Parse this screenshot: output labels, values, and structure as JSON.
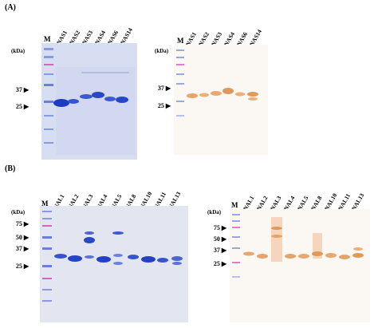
{
  "panels": {
    "A": {
      "label": "(A)",
      "kda": "(kDa)",
      "marker": "M",
      "lanes": [
        "NNAS1",
        "NNAS2",
        "NNAS3",
        "NNAS4",
        "NNAS6",
        "NNAS14"
      ],
      "mw_left": [
        "37",
        "25"
      ],
      "mw_right": [
        "37",
        "25"
      ]
    },
    "B": {
      "label": "(B)",
      "kda": "(kDa)",
      "marker": "M",
      "lanes": [
        "NNAL1",
        "NNAL2",
        "NNAL3",
        "NNAL4",
        "NNAL5",
        "NNAL8",
        "NNAL10",
        "NNAL11",
        "NNAL13"
      ],
      "mw_left": [
        "75",
        "50",
        "37",
        "25"
      ],
      "mw_right": [
        "75",
        "50",
        "37",
        "25"
      ]
    }
  },
  "colors": {
    "coomassie_bg": "#dde3f3",
    "coomassie_band": "#2846c8",
    "western_bg": "#fbf7f2",
    "western_band": "#e09a58",
    "ladder_blue": "#6a7fd8",
    "ladder_pink": "#d06ab8"
  }
}
